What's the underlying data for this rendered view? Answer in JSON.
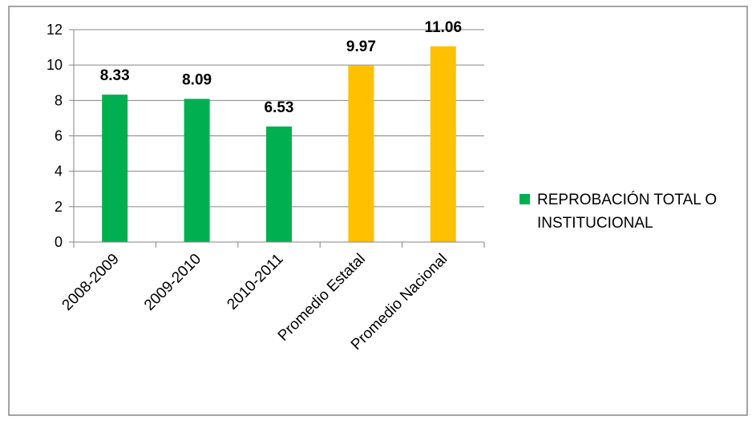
{
  "chart_data": {
    "type": "bar",
    "title": "",
    "xlabel": "",
    "ylabel": "",
    "categories": [
      "2008-2009",
      "2009-2010",
      "2010-2011",
      "Promedio Estatal",
      "Promedio Nacional"
    ],
    "series": [
      {
        "name": "REPROBACIÓN TOTAL O INSTITUCIONAL",
        "values": [
          8.33,
          8.09,
          6.53,
          9.97,
          11.06
        ],
        "data_labels": [
          "8.33",
          "8.09",
          "6.53",
          "9.97",
          "11.06"
        ],
        "colors": [
          "#00b050",
          "#00b050",
          "#00b050",
          "#ffc000",
          "#ffc000"
        ]
      }
    ],
    "ylim": [
      0,
      12
    ],
    "yticks": [
      "0",
      "2",
      "4",
      "6",
      "8",
      "10",
      "12"
    ],
    "grid": true,
    "legend": {
      "position": "right",
      "lines": [
        "REPROBACIÓN TOTAL O",
        "INSTITUCIONAL"
      ],
      "swatch_color": "#00b050"
    }
  }
}
